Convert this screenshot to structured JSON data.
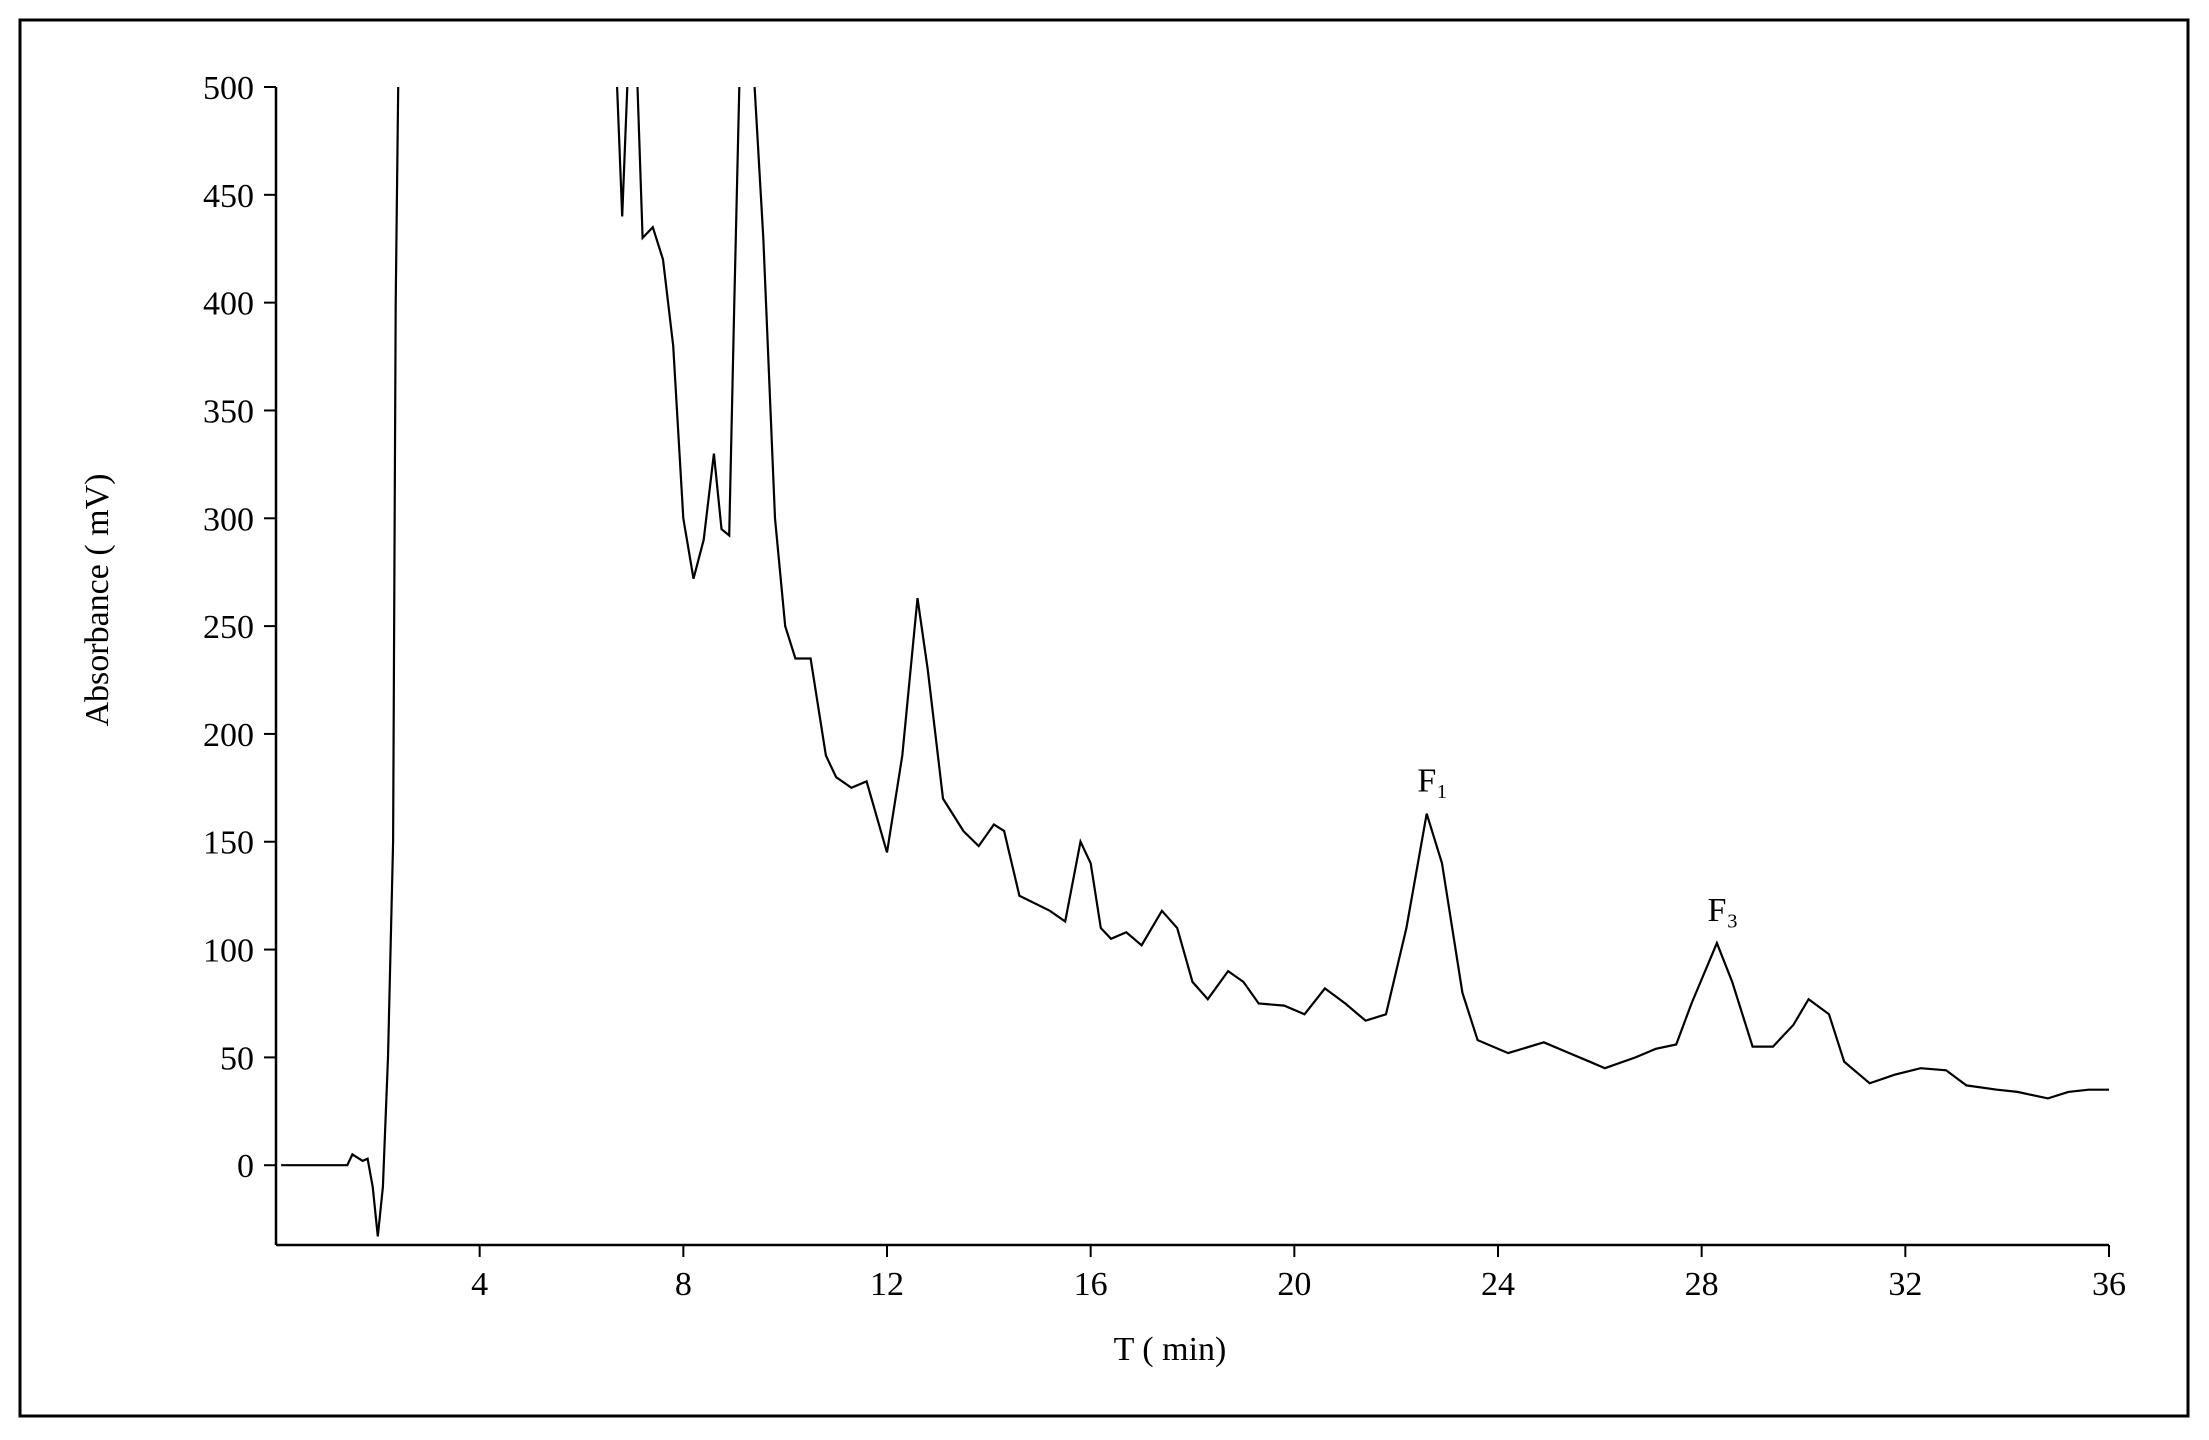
{
  "chart_data": {
    "type": "line",
    "x_label": "T ( min)",
    "y_label": "Absorbance ( mV)",
    "color": "#000000",
    "annotations": [
      "F₁",
      "F₃"
    ],
    "x": [
      0.1,
      1,
      1.4,
      1.5,
      1.7,
      1.8,
      1.9,
      2.0,
      2.1,
      2.2,
      2.3,
      2.35,
      2.4,
      2.45,
      6.6,
      6.7,
      6.8,
      6.9,
      7.0,
      7.1,
      7.2,
      7.4,
      7.6,
      7.8,
      8.0,
      8.2,
      8.4,
      8.6,
      8.75,
      8.9,
      9.0,
      9.1,
      9.3,
      9.4,
      9.57,
      9.8,
      10.0,
      10.2,
      10.5,
      10.8,
      11.0,
      11.3,
      11.6,
      12.0,
      12.3,
      12.6,
      12.8,
      13.1,
      13.5,
      13.8,
      14.1,
      14.3,
      14.6,
      15.2,
      15.5,
      15.8,
      16.0,
      16.2,
      16.4,
      16.7,
      17.0,
      17.4,
      17.7,
      18.0,
      18.3,
      18.7,
      19.0,
      19.3,
      19.8,
      20.2,
      20.6,
      21.0,
      21.4,
      21.8,
      22.2,
      22.6,
      22.9,
      23.3,
      23.6,
      24.2,
      24.9,
      25.4,
      25.8,
      26.1,
      26.7,
      27.1,
      27.5,
      27.8,
      28.3,
      28.6,
      29.0,
      29.4,
      29.8,
      30.1,
      30.5,
      30.8,
      31.3,
      31.8,
      32.3,
      32.8,
      33.2,
      33.8,
      34.2,
      34.8,
      35.2,
      35.6,
      36
    ],
    "values": [
      0,
      0,
      0,
      5,
      2,
      3,
      -10,
      -33,
      -10,
      50,
      150,
      400,
      500,
      null,
      null,
      500,
      440,
      500,
      null,
      500,
      430,
      435,
      420,
      380,
      300,
      272,
      290,
      330,
      295,
      292,
      400,
      500,
      null,
      500,
      430,
      300,
      250,
      235,
      235,
      190,
      180,
      175,
      178,
      145,
      190,
      263,
      230,
      170,
      155,
      148,
      158,
      155,
      125,
      118,
      113,
      150,
      140,
      110,
      105,
      108,
      102,
      118,
      110,
      85,
      77,
      90,
      85,
      75,
      74,
      70,
      82,
      75,
      67,
      70,
      110,
      163,
      140,
      80,
      58,
      52,
      57,
      52,
      48,
      45,
      50,
      54,
      56,
      75,
      103,
      85,
      55,
      55,
      65,
      77,
      70,
      48,
      38,
      42,
      45,
      44,
      37,
      35,
      34,
      31,
      34,
      35,
      35
    ],
    "xlim": [
      0,
      36
    ],
    "ylim": [
      -37,
      500
    ],
    "xticks": [
      4,
      8,
      12,
      16,
      20,
      24,
      28,
      32,
      36
    ],
    "yticks": [
      0,
      50,
      100,
      150,
      200,
      250,
      300,
      350,
      400,
      450,
      500
    ]
  }
}
